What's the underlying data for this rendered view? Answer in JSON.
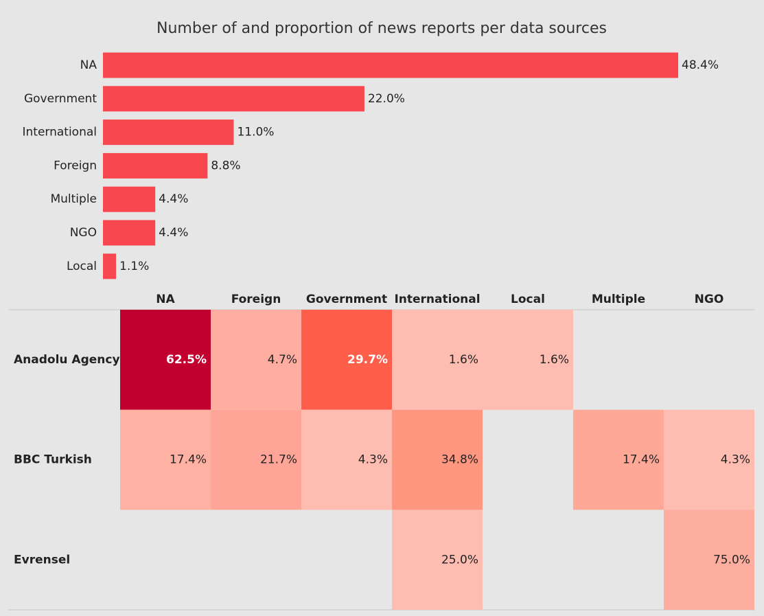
{
  "chart_data": [
    {
      "type": "bar",
      "orientation": "horizontal",
      "title": "Number of and proportion of news reports per data sources",
      "categories": [
        "NA",
        "Government",
        "International",
        "Foreign",
        "Multiple",
        "NGO",
        "Local"
      ],
      "values": [
        48.4,
        22.0,
        11.0,
        8.8,
        4.4,
        4.4,
        1.1
      ],
      "value_labels": [
        "48.4%",
        "22.0%",
        "11.0%",
        "8.8%",
        "4.4%",
        "4.4%",
        "1.1%"
      ],
      "color": "#f8474f"
    },
    {
      "type": "heatmap",
      "columns": [
        "NA",
        "Foreign",
        "Government",
        "International",
        "Local",
        "Multiple",
        "NGO"
      ],
      "rows": [
        "Anadolu Agency",
        "BBC Turkish",
        "Evrensel"
      ],
      "values": [
        [
          62.5,
          4.7,
          29.7,
          1.6,
          1.6,
          null,
          null
        ],
        [
          17.4,
          21.7,
          4.3,
          34.8,
          null,
          17.4,
          4.3
        ],
        [
          null,
          null,
          null,
          25.0,
          null,
          null,
          75.0
        ]
      ],
      "value_labels": [
        [
          "62.5%",
          "4.7%",
          "29.7%",
          "1.6%",
          "1.6%",
          null,
          null
        ],
        [
          "17.4%",
          "21.7%",
          "4.3%",
          "34.8%",
          null,
          "17.4%",
          "4.3%"
        ],
        [
          null,
          null,
          null,
          "25.0%",
          null,
          null,
          "75.0%"
        ]
      ],
      "colors": [
        [
          "#c1002f",
          "#feada0",
          "#fe5e4a",
          "#ffbcb0",
          "#ffbcb0",
          null,
          null
        ],
        [
          "#ffb1a4",
          "#fea597",
          "#ffbcb0",
          "#fe9680",
          null,
          "#fea898",
          "#ffbcb0"
        ],
        [
          null,
          null,
          null,
          "#ffbcb0",
          null,
          null,
          "#feae9f"
        ]
      ]
    }
  ]
}
